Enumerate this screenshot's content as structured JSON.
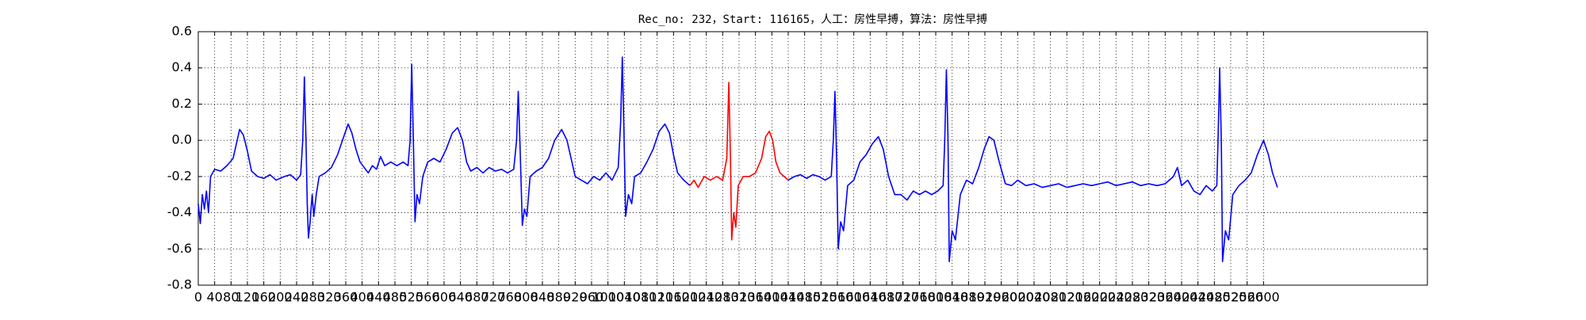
{
  "chart_data": {
    "type": "line",
    "title": "Rec_no: 232，Start: 116165，人工：房性早搏，算法：房性早搏",
    "xlim": [
      0,
      3000
    ],
    "xticks": [
      0,
      40,
      80,
      120,
      160,
      200,
      240,
      280,
      320,
      360,
      400,
      440,
      480,
      520,
      560,
      600,
      640,
      680,
      720,
      760,
      800,
      840,
      880,
      920,
      960,
      1000,
      1040,
      1080,
      1120,
      1160,
      1200,
      1240,
      1280,
      1320,
      1360,
      1400,
      1440,
      1480,
      1520,
      1560,
      1600,
      1640,
      1680,
      1720,
      1760,
      1800,
      1840,
      1880,
      1920,
      1960,
      2000,
      2040,
      2080,
      2120,
      2160,
      2200,
      2240,
      2280,
      2320,
      2360,
      2400,
      2440,
      2480,
      2520,
      2560,
      2600
    ],
    "ylim": [
      -0.8,
      0.6
    ],
    "yticks": [
      -0.8,
      -0.6,
      -0.4,
      -0.2,
      {
        "value": 0,
        "label": "0.0"
      },
      0.2,
      0.4,
      0.6
    ],
    "grid": true,
    "series": [
      {
        "color": "#0000ff",
        "x": [
          0,
          5,
          10,
          15,
          20,
          25,
          30,
          40,
          55,
          70,
          85,
          95,
          101,
          110,
          120,
          130,
          145,
          160,
          175,
          190,
          210,
          225,
          240,
          250,
          255,
          259,
          263,
          266,
          269,
          273,
          278,
          282,
          288,
          295,
          310,
          325,
          340,
          355,
          366,
          375,
          385,
          395,
          405,
          415,
          425,
          435,
          445,
          455,
          470,
          485,
          500,
          512,
          517,
          521,
          525,
          529,
          534,
          540,
          548,
          560,
          575,
          590,
          605,
          620,
          633,
          645,
          655,
          665,
          680,
          695,
          710,
          725,
          740,
          755,
          770,
          777,
          781,
          785,
          791,
          796,
          802,
          810,
          825,
          840,
          855,
          870,
          887,
          900,
          910,
          920,
          935,
          950,
          965,
          980,
          995,
          1010,
          1025,
          1031,
          1035,
          1039,
          1043,
          1050,
          1058,
          1065,
          1080,
          1095,
          1110,
          1125,
          1139,
          1150,
          1160,
          1170,
          1185,
          1200,
          1320,
          1440,
          1455,
          1470,
          1485,
          1500,
          1515,
          1530,
          1545,
          1550,
          1554,
          1558,
          1562,
          1568,
          1575,
          1585,
          1600,
          1615,
          1630,
          1645,
          1660,
          1672,
          1685,
          1700,
          1715,
          1730,
          1745,
          1760,
          1775,
          1790,
          1805,
          1818,
          1822,
          1826,
          1830,
          1833,
          1840,
          1848,
          1860,
          1875,
          1890,
          1905,
          1918,
          1930,
          1942,
          1955,
          1970,
          1985,
          2000,
          2020,
          2040,
          2060,
          2080,
          2100,
          2120,
          2140,
          2160,
          2180,
          2200,
          2220,
          2240,
          2260,
          2280,
          2300,
          2320,
          2340,
          2360,
          2380,
          2390,
          2400,
          2415,
          2430,
          2445,
          2460,
          2475,
          2486,
          2489,
          2493,
          2497,
          2500,
          2507,
          2515,
          2525,
          2540,
          2555,
          2570,
          2585,
          2600,
          2612,
          2622,
          2634
        ],
        "values": [
          -0.35,
          -0.46,
          -0.3,
          -0.38,
          -0.28,
          -0.4,
          -0.2,
          -0.16,
          -0.17,
          -0.14,
          -0.1,
          0.0,
          0.06,
          0.03,
          -0.06,
          -0.17,
          -0.2,
          -0.21,
          -0.19,
          -0.22,
          -0.2,
          -0.19,
          -0.22,
          -0.19,
          0.0,
          0.35,
          0.0,
          -0.35,
          -0.54,
          -0.45,
          -0.3,
          -0.42,
          -0.3,
          -0.2,
          -0.18,
          -0.15,
          -0.08,
          0.02,
          0.09,
          0.04,
          -0.05,
          -0.12,
          -0.15,
          -0.18,
          -0.14,
          -0.16,
          -0.09,
          -0.14,
          -0.12,
          -0.14,
          -0.12,
          -0.14,
          0.0,
          0.42,
          0.0,
          -0.45,
          -0.3,
          -0.35,
          -0.2,
          -0.12,
          -0.1,
          -0.12,
          -0.05,
          0.04,
          0.07,
          0.0,
          -0.12,
          -0.17,
          -0.15,
          -0.18,
          -0.15,
          -0.17,
          -0.16,
          -0.18,
          -0.16,
          0.0,
          0.27,
          0.0,
          -0.47,
          -0.38,
          -0.42,
          -0.2,
          -0.17,
          -0.15,
          -0.1,
          0.0,
          0.06,
          0.0,
          -0.1,
          -0.2,
          -0.22,
          -0.24,
          -0.2,
          -0.22,
          -0.18,
          -0.22,
          -0.15,
          0.1,
          0.46,
          0.05,
          -0.42,
          -0.3,
          -0.35,
          -0.2,
          -0.18,
          -0.12,
          -0.05,
          0.05,
          0.09,
          0.04,
          -0.08,
          -0.18,
          -0.22,
          -0.25,
          null,
          -0.22,
          -0.2,
          -0.19,
          -0.21,
          -0.19,
          -0.2,
          -0.22,
          -0.2,
          0.0,
          0.27,
          -0.1,
          -0.6,
          -0.45,
          -0.5,
          -0.25,
          -0.22,
          -0.12,
          -0.08,
          -0.02,
          0.02,
          -0.05,
          -0.2,
          -0.3,
          -0.3,
          -0.33,
          -0.28,
          -0.3,
          -0.28,
          -0.3,
          -0.28,
          -0.25,
          0.0,
          0.39,
          0.0,
          -0.67,
          -0.5,
          -0.55,
          -0.3,
          -0.22,
          -0.24,
          -0.15,
          -0.05,
          0.02,
          0.0,
          -0.12,
          -0.24,
          -0.25,
          -0.22,
          -0.25,
          -0.24,
          -0.26,
          -0.25,
          -0.24,
          -0.26,
          -0.25,
          -0.24,
          -0.25,
          -0.24,
          -0.23,
          -0.25,
          -0.24,
          -0.23,
          -0.25,
          -0.24,
          -0.25,
          -0.24,
          -0.2,
          -0.15,
          -0.25,
          -0.22,
          -0.28,
          -0.3,
          -0.25,
          -0.28,
          -0.25,
          0.0,
          0.4,
          0.0,
          -0.67,
          -0.5,
          -0.55,
          -0.3,
          -0.25,
          -0.22,
          -0.18,
          -0.08,
          0.0,
          -0.08,
          -0.18,
          -0.26
        ]
      },
      {
        "color": "#ff0000",
        "x": [
          1200,
          1210,
          1220,
          1235,
          1250,
          1265,
          1280,
          1290,
          1295,
          1299,
          1302,
          1307,
          1312,
          1318,
          1330,
          1345,
          1360,
          1375,
          1385,
          1394,
          1402,
          1410,
          1420,
          1430,
          1440
        ],
        "values": [
          -0.25,
          -0.22,
          -0.26,
          -0.2,
          -0.22,
          -0.2,
          -0.22,
          -0.1,
          0.32,
          -0.1,
          -0.55,
          -0.4,
          -0.48,
          -0.25,
          -0.2,
          -0.2,
          -0.18,
          -0.1,
          0.02,
          0.05,
          0.0,
          -0.12,
          -0.18,
          -0.2,
          -0.22
        ]
      }
    ]
  }
}
